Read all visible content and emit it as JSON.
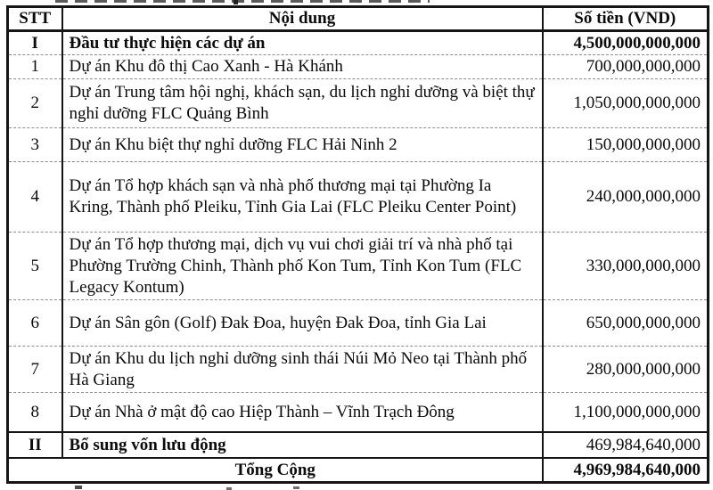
{
  "document": {
    "colors": {
      "text": "#0b0b0b",
      "border": "#151515",
      "dotted_separator": "#8d8d8d",
      "background": "#ffffff"
    },
    "table": {
      "headers": {
        "no": "STT",
        "content": "Nội dung",
        "amount": "Số tiền (VND)"
      },
      "rows": [
        {
          "no": "I",
          "content": "Đầu tư thực hiện các dự án",
          "amount": "4,500,000,000,000"
        },
        {
          "no": "1",
          "content": "Dự án Khu đô thị Cao Xanh - Hà Khánh",
          "amount": "700,000,000,000"
        },
        {
          "no": "2",
          "content": "Dự án Trung tâm hội nghị, khách sạn, du lịch nghỉ dưỡng và biệt thự nghỉ dưỡng FLC Quảng Bình",
          "amount": "1,050,000,000,000"
        },
        {
          "no": "3",
          "content": "Dự án Khu biệt thự nghỉ dưỡng FLC Hải Ninh 2",
          "amount": "150,000,000,000"
        },
        {
          "no": "4",
          "content": "Dự án Tổ hợp khách sạn và nhà phố thương mại tại Phường Ia Kring, Thành phố Pleiku, Tỉnh Gia Lai (FLC Pleiku Center Point)",
          "amount": "240,000,000,000"
        },
        {
          "no": "5",
          "content": "Dự án Tổ hợp thương mại, dịch vụ vui chơi  giải trí và nhà phố tại Phường Trường Chinh, Thành phố Kon Tum, Tỉnh Kon Tum (FLC Legacy Kontum)",
          "amount": "330,000,000,000"
        },
        {
          "no": "6",
          "content": "Dự án Sân gôn (Golf) Đak Đoa, huyện Đak Đoa, tỉnh Gia Lai",
          "amount": "650,000,000,000"
        },
        {
          "no": "7",
          "content": "Dự án Khu du lịch nghỉ dưỡng sinh thái Núi Mỏ Neo tại Thành phố Hà Giang",
          "amount": "280,000,000,000"
        },
        {
          "no": "8",
          "content": "Dự án Nhà ở mật độ cao Hiệp Thành – Vĩnh Trạch Đông",
          "amount": "1,100,000,000,000"
        },
        {
          "no": "II",
          "content": "Bổ sung vốn lưu động",
          "amount": "469,984,640,000"
        }
      ],
      "total": {
        "label": "Tổng Cộng",
        "amount": "4,969,984,640,000"
      }
    }
  }
}
